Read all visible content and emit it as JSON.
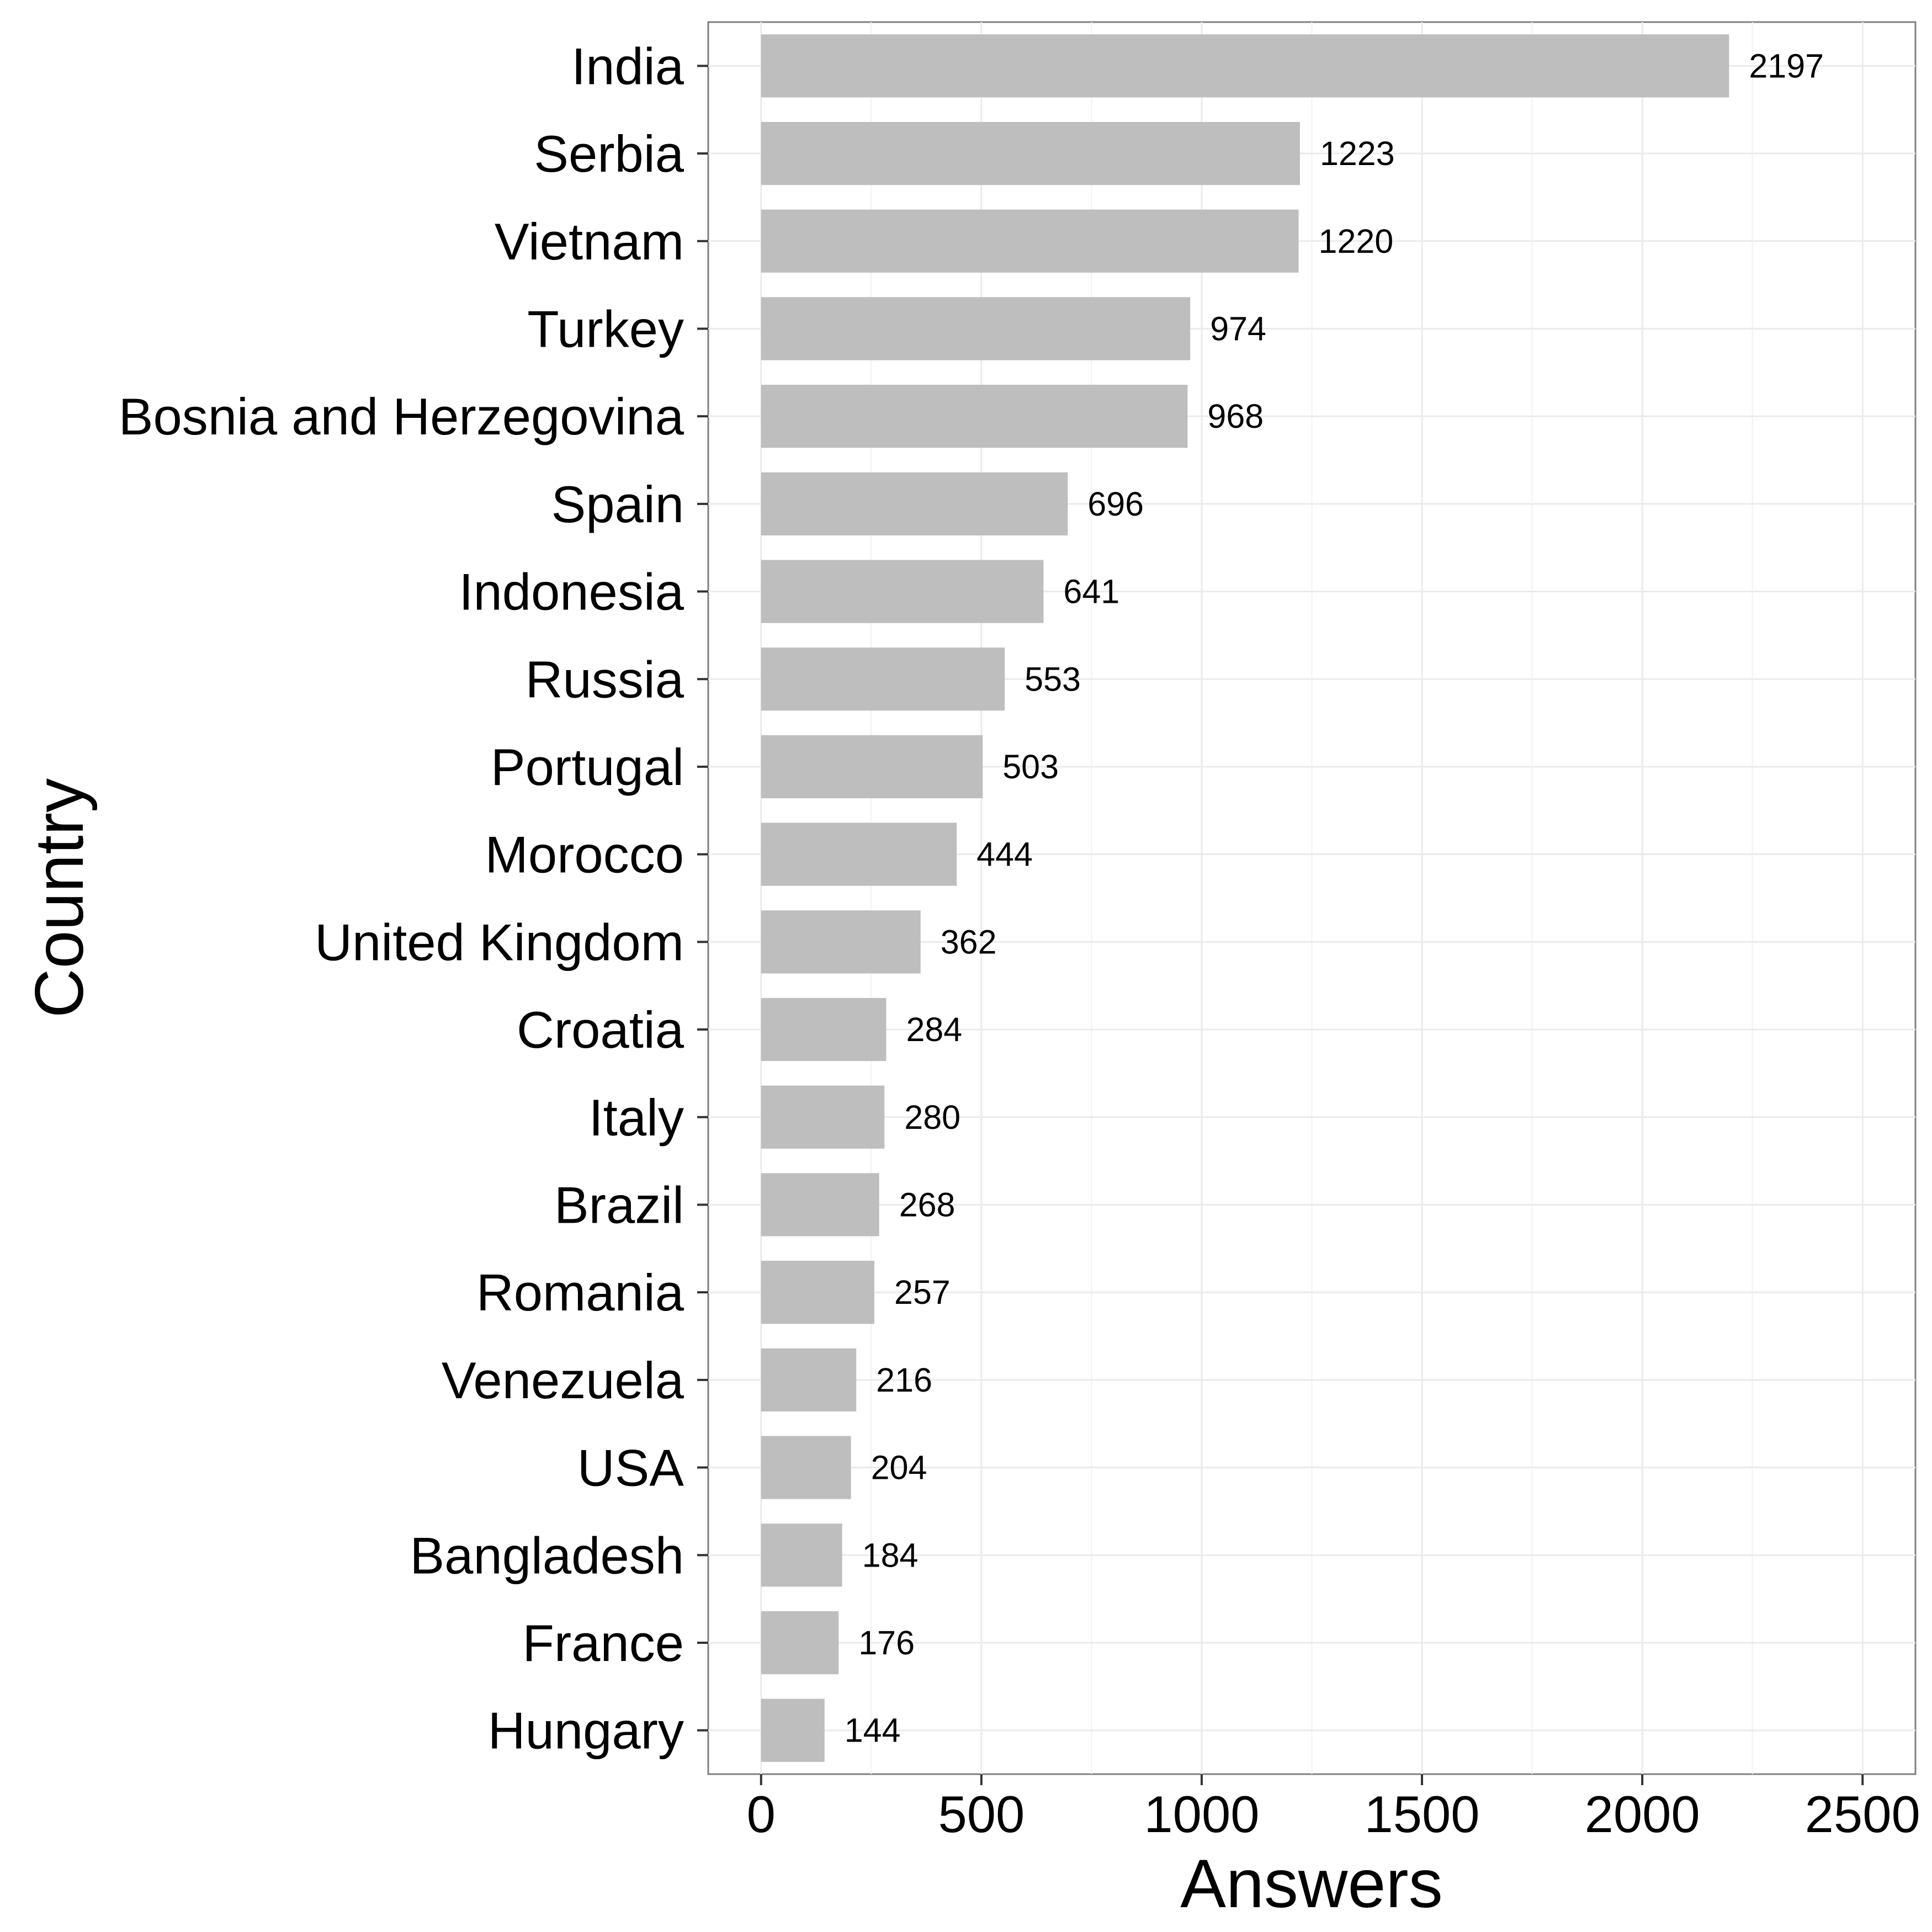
{
  "chart_data": {
    "type": "bar",
    "orientation": "horizontal",
    "xlabel": "Answers",
    "ylabel": "Country",
    "xlim": [
      -120,
      2620
    ],
    "xticks": [
      0,
      500,
      1000,
      1500,
      2000,
      2500
    ],
    "grid": true,
    "bar_color": "#bebebe",
    "categories": [
      "India",
      "Serbia",
      "Vietnam",
      "Turkey",
      "Bosnia and Herzegovina",
      "Spain",
      "Indonesia",
      "Russia",
      "Portugal",
      "Morocco",
      "United Kingdom",
      "Croatia",
      "Italy",
      "Brazil",
      "Romania",
      "Venezuela",
      "USA",
      "Bangladesh",
      "France",
      "Hungary"
    ],
    "values": [
      2197,
      1223,
      1220,
      974,
      968,
      696,
      641,
      553,
      503,
      444,
      362,
      284,
      280,
      268,
      257,
      216,
      204,
      184,
      176,
      144
    ]
  }
}
